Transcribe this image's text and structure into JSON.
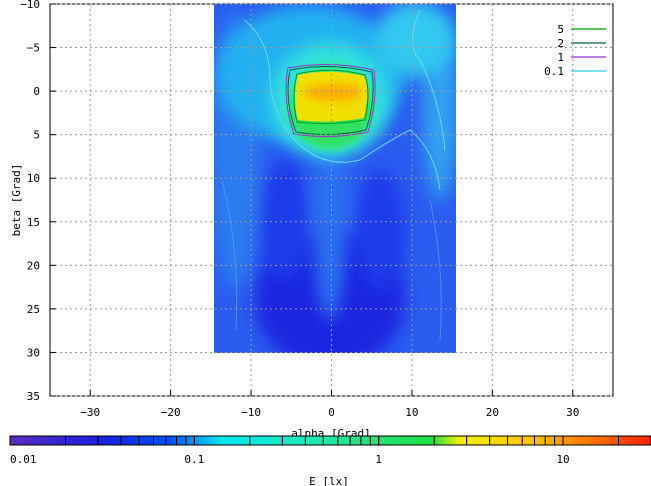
{
  "chart_data": {
    "type": "heatmap",
    "title": "",
    "xlabel": "alpha [Grad]",
    "ylabel": "beta [Grad]",
    "xlim": [
      -35,
      35
    ],
    "ylim": [
      -10,
      35
    ],
    "y_inverted": true,
    "xticks": [
      -30,
      -20,
      -10,
      0,
      10,
      20,
      30
    ],
    "yticks": [
      -10,
      -5,
      0,
      5,
      10,
      15,
      20,
      25,
      30,
      35
    ],
    "grid": true,
    "data_extent": {
      "alpha": [
        -15,
        15
      ],
      "beta": [
        -10,
        30
      ]
    },
    "colorbar": {
      "label": "E [lx]",
      "scale": "log",
      "range": [
        0.01,
        30
      ],
      "tick_labels": [
        "0.01",
        "0.1",
        "1",
        "10"
      ],
      "tick_values": [
        0.01,
        0.1,
        1,
        10
      ]
    },
    "legend": {
      "position": "top-right",
      "entries": [
        {
          "label": "5",
          "value": 5,
          "color": "#00a000"
        },
        {
          "label": "2",
          "value": 2,
          "color": "#006040"
        },
        {
          "label": "1",
          "value": 1,
          "color": "#9933cc"
        },
        {
          "label": "0.1",
          "value": 0.1,
          "color": "#33ccee"
        }
      ]
    },
    "hotspot": {
      "alpha": 0,
      "beta": 0,
      "peak_value": 10
    }
  }
}
